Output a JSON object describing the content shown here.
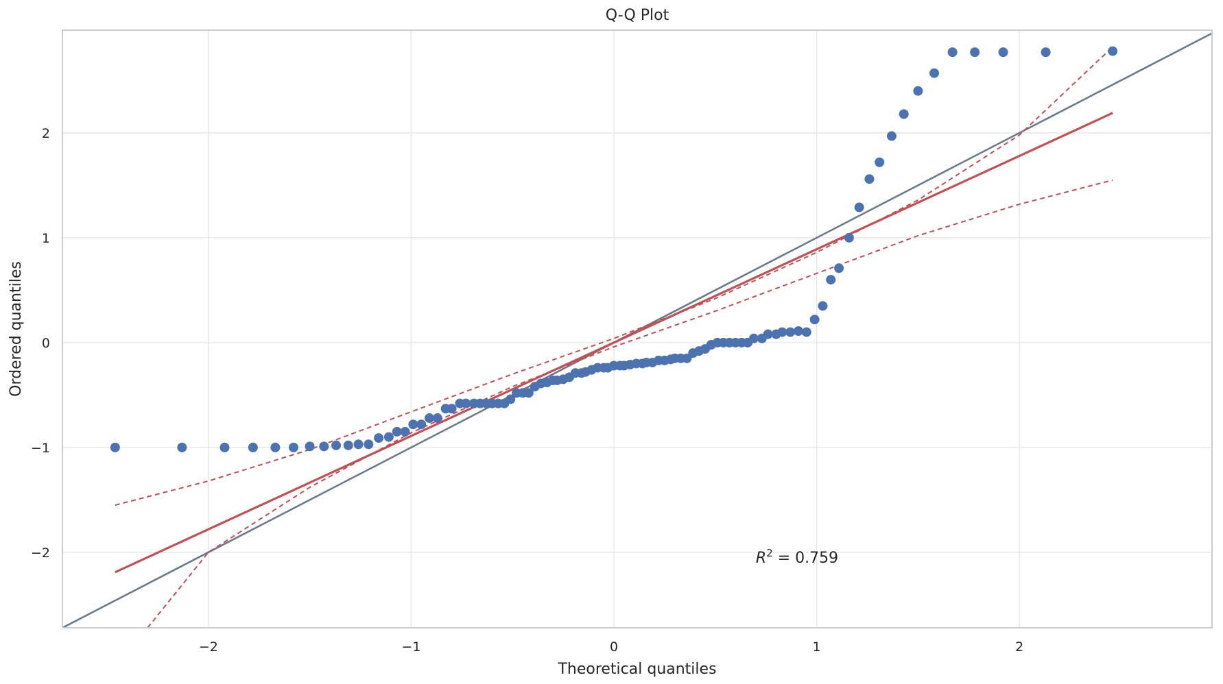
{
  "chart_data": {
    "type": "scatter",
    "title": "Q-Q Plot",
    "xlabel": "Theoretical quantiles",
    "ylabel": "Ordered quantiles",
    "xlim": [
      -2.72,
      2.95
    ],
    "ylim": [
      -2.72,
      2.98
    ],
    "grid": true,
    "x_ticks": [
      -2,
      -1,
      0,
      1,
      2
    ],
    "y_ticks": [
      -2,
      -1,
      0,
      1,
      2
    ],
    "x_tick_labels": [
      "−2",
      "−1",
      "0",
      "1",
      "2"
    ],
    "y_tick_labels": [
      "−2",
      "−1",
      "0",
      "1",
      "2"
    ],
    "annotation": {
      "text_var": "R",
      "text_sup": "2",
      "text_rest": " = 0.759",
      "x": 0.7,
      "y": -2.1
    },
    "colors": {
      "points": "#4c72b0",
      "fit_line": "#c44e52",
      "confidence_band": "#c44e52",
      "identity_line": "#6a7b8c",
      "grid": "#e4e4e4",
      "frame": "#cccccc"
    },
    "identity_line": {
      "slope": 1,
      "intercept": 0
    },
    "fit_line": {
      "x": [
        -2.46,
        2.46
      ],
      "y": [
        -2.19,
        2.19
      ]
    },
    "confidence_band_upper": {
      "x": [
        -2.46,
        -2.0,
        -1.5,
        -1.0,
        -0.5,
        0.0,
        0.5,
        1.0,
        1.5,
        2.0,
        2.46
      ],
      "y": [
        -1.55,
        -1.32,
        -1.02,
        -0.66,
        -0.3,
        0.04,
        0.42,
        0.86,
        1.36,
        1.98,
        2.82
      ]
    },
    "confidence_band_lower": {
      "x": [
        -2.3,
        -2.0,
        -1.5,
        -1.0,
        -0.5,
        0.0,
        0.5,
        1.0,
        1.5,
        2.0,
        2.46
      ],
      "y": [
        -2.72,
        -2.0,
        -1.38,
        -0.86,
        -0.42,
        -0.04,
        0.3,
        0.66,
        1.02,
        1.32,
        1.55
      ]
    },
    "series": [
      {
        "points": [
          [
            -2.46,
            -1.0
          ],
          [
            -2.13,
            -1.0
          ],
          [
            -1.92,
            -1.0
          ],
          [
            -1.78,
            -1.0
          ],
          [
            -1.67,
            -1.0
          ],
          [
            -1.58,
            -1.0
          ],
          [
            -1.5,
            -0.99
          ],
          [
            -1.43,
            -0.99
          ],
          [
            -1.37,
            -0.98
          ],
          [
            -1.31,
            -0.98
          ],
          [
            -1.26,
            -0.97
          ],
          [
            -1.21,
            -0.97
          ],
          [
            -1.16,
            -0.91
          ],
          [
            -1.11,
            -0.9
          ],
          [
            -1.07,
            -0.85
          ],
          [
            -1.03,
            -0.85
          ],
          [
            -0.99,
            -0.78
          ],
          [
            -0.95,
            -0.78
          ],
          [
            -0.91,
            -0.72
          ],
          [
            -0.87,
            -0.72
          ],
          [
            -0.83,
            -0.63
          ],
          [
            -0.8,
            -0.63
          ],
          [
            -0.76,
            -0.58
          ],
          [
            -0.73,
            -0.58
          ],
          [
            -0.69,
            -0.58
          ],
          [
            -0.66,
            -0.58
          ],
          [
            -0.63,
            -0.58
          ],
          [
            -0.6,
            -0.58
          ],
          [
            -0.57,
            -0.58
          ],
          [
            -0.54,
            -0.58
          ],
          [
            -0.51,
            -0.54
          ],
          [
            -0.48,
            -0.48
          ],
          [
            -0.45,
            -0.48
          ],
          [
            -0.42,
            -0.48
          ],
          [
            -0.39,
            -0.42
          ],
          [
            -0.36,
            -0.39
          ],
          [
            -0.33,
            -0.38
          ],
          [
            -0.3,
            -0.36
          ],
          [
            -0.28,
            -0.36
          ],
          [
            -0.25,
            -0.35
          ],
          [
            -0.22,
            -0.33
          ],
          [
            -0.19,
            -0.29
          ],
          [
            -0.16,
            -0.29
          ],
          [
            -0.14,
            -0.28
          ],
          [
            -0.11,
            -0.26
          ],
          [
            -0.08,
            -0.24
          ],
          [
            -0.05,
            -0.24
          ],
          [
            -0.03,
            -0.24
          ],
          [
            0.0,
            -0.22
          ],
          [
            0.03,
            -0.22
          ],
          [
            0.05,
            -0.22
          ],
          [
            0.08,
            -0.21
          ],
          [
            0.11,
            -0.2
          ],
          [
            0.14,
            -0.2
          ],
          [
            0.16,
            -0.19
          ],
          [
            0.19,
            -0.19
          ],
          [
            0.22,
            -0.17
          ],
          [
            0.25,
            -0.17
          ],
          [
            0.28,
            -0.16
          ],
          [
            0.3,
            -0.15
          ],
          [
            0.33,
            -0.15
          ],
          [
            0.36,
            -0.15
          ],
          [
            0.39,
            -0.1
          ],
          [
            0.42,
            -0.08
          ],
          [
            0.45,
            -0.06
          ],
          [
            0.48,
            -0.02
          ],
          [
            0.51,
            0.0
          ],
          [
            0.54,
            0.0
          ],
          [
            0.57,
            0.0
          ],
          [
            0.6,
            0.0
          ],
          [
            0.63,
            0.0
          ],
          [
            0.66,
            0.0
          ],
          [
            0.69,
            0.04
          ],
          [
            0.73,
            0.04
          ],
          [
            0.76,
            0.08
          ],
          [
            0.8,
            0.08
          ],
          [
            0.83,
            0.1
          ],
          [
            0.87,
            0.1
          ],
          [
            0.91,
            0.11
          ],
          [
            0.95,
            0.1
          ],
          [
            0.99,
            0.22
          ],
          [
            1.03,
            0.35
          ],
          [
            1.07,
            0.6
          ],
          [
            1.11,
            0.71
          ],
          [
            1.16,
            1.0
          ],
          [
            1.21,
            1.29
          ],
          [
            1.26,
            1.56
          ],
          [
            1.31,
            1.72
          ],
          [
            1.37,
            1.97
          ],
          [
            1.43,
            2.18
          ],
          [
            1.5,
            2.4
          ],
          [
            1.58,
            2.57
          ],
          [
            1.67,
            2.77
          ],
          [
            1.78,
            2.77
          ],
          [
            1.92,
            2.77
          ],
          [
            2.13,
            2.77
          ],
          [
            2.46,
            2.78
          ]
        ]
      }
    ]
  }
}
